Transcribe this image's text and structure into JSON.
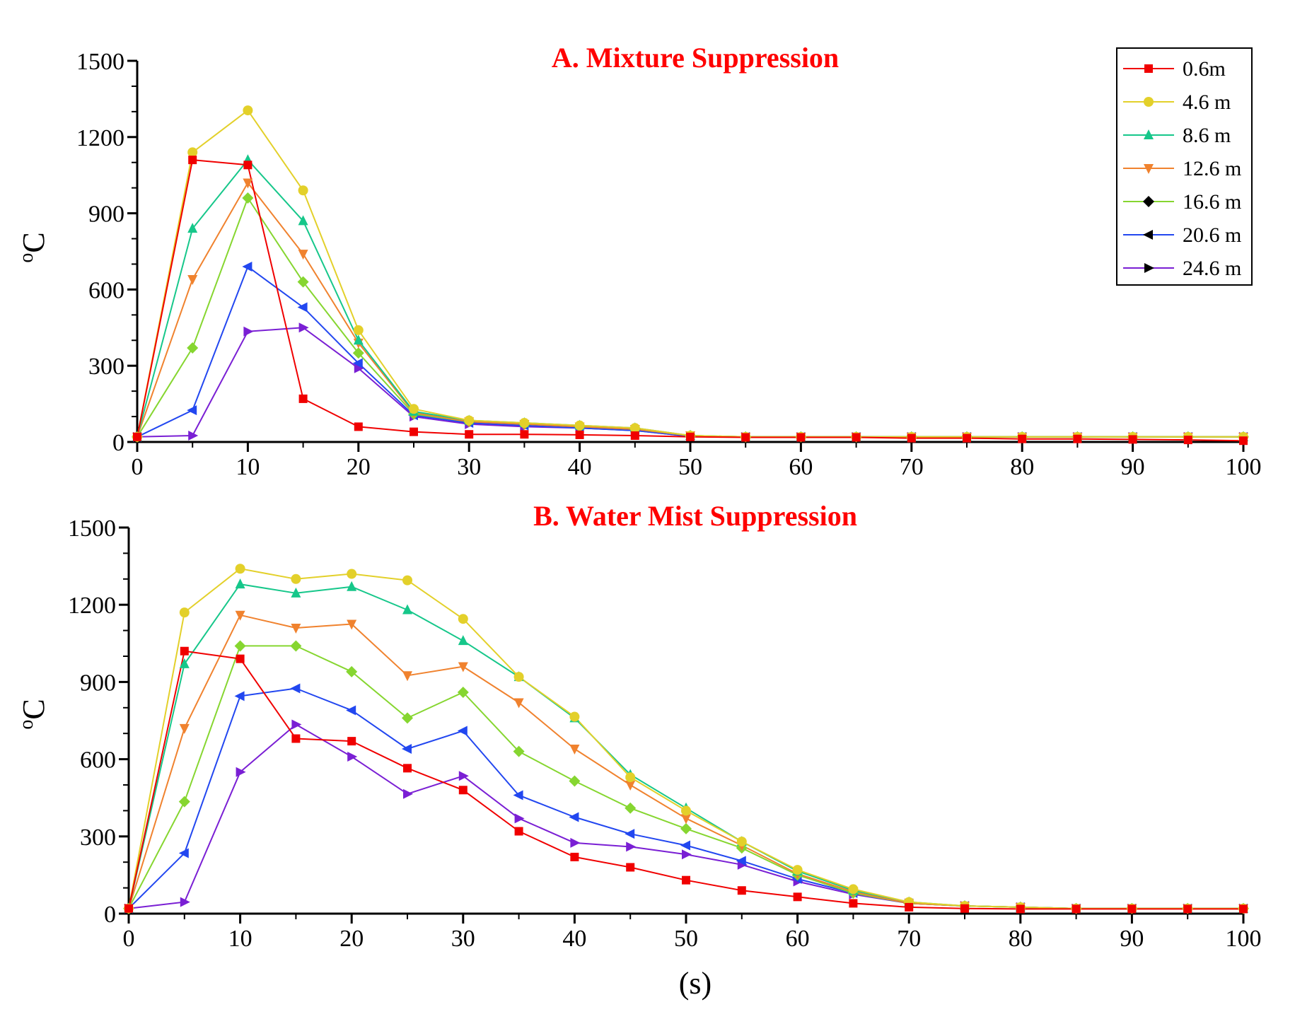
{
  "legend": [
    {
      "label": "0.6m",
      "color": "#f00000",
      "marker": "square"
    },
    {
      "label": "4.6 m",
      "color": "#e3d02a",
      "marker": "circle"
    },
    {
      "label": "8.6 m",
      "color": "#16c78a",
      "marker": "triangle-up"
    },
    {
      "label": "12.6 m",
      "color": "#f0822e",
      "marker": "triangle-down"
    },
    {
      "label": "16.6 m",
      "color": "#86d630",
      "marker": "diamond"
    },
    {
      "label": "20.6 m",
      "color": "#2247f0",
      "marker": "triangle-left"
    },
    {
      "label": "24.6 m",
      "color": "#7a1fd4",
      "marker": "triangle-right"
    }
  ],
  "chart_data": [
    {
      "type": "line",
      "title": "A. Mixture Suppression",
      "title_color": "#ff0000",
      "xlabel": "",
      "ylabel": "oC",
      "xlim": [
        0,
        100
      ],
      "ylim": [
        0,
        1500
      ],
      "xticks": [
        0,
        10,
        20,
        30,
        40,
        50,
        60,
        70,
        80,
        90,
        100
      ],
      "yticks": [
        0,
        300,
        600,
        900,
        1200,
        1500
      ],
      "x": [
        0,
        5,
        10,
        15,
        20,
        25,
        30,
        35,
        40,
        45,
        50,
        55,
        60,
        65,
        70,
        75,
        80,
        85,
        90,
        95,
        100
      ],
      "series": [
        {
          "name": "0.6m",
          "values": [
            20,
            1110,
            1090,
            170,
            60,
            40,
            30,
            30,
            28,
            25,
            20,
            18,
            18,
            18,
            15,
            15,
            12,
            12,
            10,
            8,
            5
          ]
        },
        {
          "name": "4.6 m",
          "values": [
            20,
            1140,
            1305,
            990,
            440,
            130,
            85,
            75,
            65,
            55,
            25,
            20,
            20,
            20,
            20,
            20,
            20,
            20,
            20,
            20,
            20
          ]
        },
        {
          "name": "8.6 m",
          "values": [
            20,
            840,
            1110,
            870,
            400,
            120,
            85,
            75,
            65,
            55,
            25,
            20,
            20,
            20,
            20,
            20,
            20,
            20,
            20,
            20,
            20
          ]
        },
        {
          "name": "12.6 m",
          "values": [
            20,
            640,
            1020,
            740,
            390,
            115,
            80,
            70,
            60,
            50,
            25,
            20,
            20,
            20,
            20,
            20,
            20,
            20,
            20,
            20,
            20
          ]
        },
        {
          "name": "16.6 m",
          "values": [
            20,
            370,
            960,
            630,
            350,
            110,
            80,
            70,
            60,
            50,
            25,
            20,
            20,
            20,
            20,
            20,
            20,
            20,
            20,
            20,
            20
          ]
        },
        {
          "name": "20.6 m",
          "values": [
            20,
            125,
            690,
            530,
            310,
            105,
            75,
            65,
            55,
            45,
            22,
            20,
            20,
            20,
            20,
            20,
            20,
            20,
            20,
            20,
            20
          ]
        },
        {
          "name": "24.6 m",
          "values": [
            20,
            25,
            435,
            450,
            290,
            100,
            70,
            60,
            55,
            45,
            22,
            20,
            20,
            20,
            20,
            20,
            20,
            20,
            20,
            20,
            20
          ]
        }
      ]
    },
    {
      "type": "line",
      "title": "B. Water Mist Suppression",
      "title_color": "#ff0000",
      "xlabel": "(s)",
      "ylabel": "oC",
      "xlim": [
        0,
        100
      ],
      "ylim": [
        0,
        1500
      ],
      "xticks": [
        0,
        10,
        20,
        30,
        40,
        50,
        60,
        70,
        80,
        90,
        100
      ],
      "yticks": [
        0,
        300,
        600,
        900,
        1200,
        1500
      ],
      "x": [
        0,
        5,
        10,
        15,
        20,
        25,
        30,
        35,
        40,
        45,
        50,
        55,
        60,
        65,
        70,
        75,
        80,
        85,
        90,
        95,
        100
      ],
      "series": [
        {
          "name": "0.6m",
          "values": [
            20,
            1020,
            990,
            680,
            670,
            565,
            480,
            320,
            220,
            180,
            130,
            90,
            65,
            40,
            25,
            20,
            18,
            18,
            18,
            18,
            18
          ]
        },
        {
          "name": "4.6 m",
          "values": [
            20,
            1170,
            1340,
            1300,
            1320,
            1295,
            1145,
            920,
            765,
            530,
            400,
            280,
            170,
            95,
            45,
            30,
            25,
            20,
            20,
            20,
            20
          ]
        },
        {
          "name": "8.6 m",
          "values": [
            20,
            970,
            1280,
            1245,
            1270,
            1180,
            1060,
            920,
            760,
            540,
            410,
            280,
            165,
            90,
            45,
            30,
            25,
            20,
            20,
            20,
            20
          ]
        },
        {
          "name": "12.6 m",
          "values": [
            20,
            720,
            1160,
            1110,
            1125,
            925,
            960,
            820,
            640,
            500,
            370,
            265,
            155,
            85,
            40,
            30,
            25,
            20,
            20,
            20,
            20
          ]
        },
        {
          "name": "16.6 m",
          "values": [
            20,
            435,
            1040,
            1040,
            940,
            760,
            860,
            630,
            515,
            410,
            330,
            255,
            150,
            80,
            40,
            30,
            25,
            20,
            20,
            20,
            20
          ]
        },
        {
          "name": "20.6 m",
          "values": [
            20,
            235,
            845,
            875,
            790,
            640,
            710,
            460,
            375,
            310,
            265,
            205,
            135,
            80,
            40,
            30,
            25,
            20,
            20,
            20,
            20
          ]
        },
        {
          "name": "24.6 m",
          "values": [
            20,
            45,
            550,
            735,
            610,
            465,
            535,
            370,
            275,
            260,
            230,
            190,
            125,
            75,
            40,
            30,
            25,
            20,
            20,
            20,
            20
          ]
        }
      ]
    }
  ]
}
